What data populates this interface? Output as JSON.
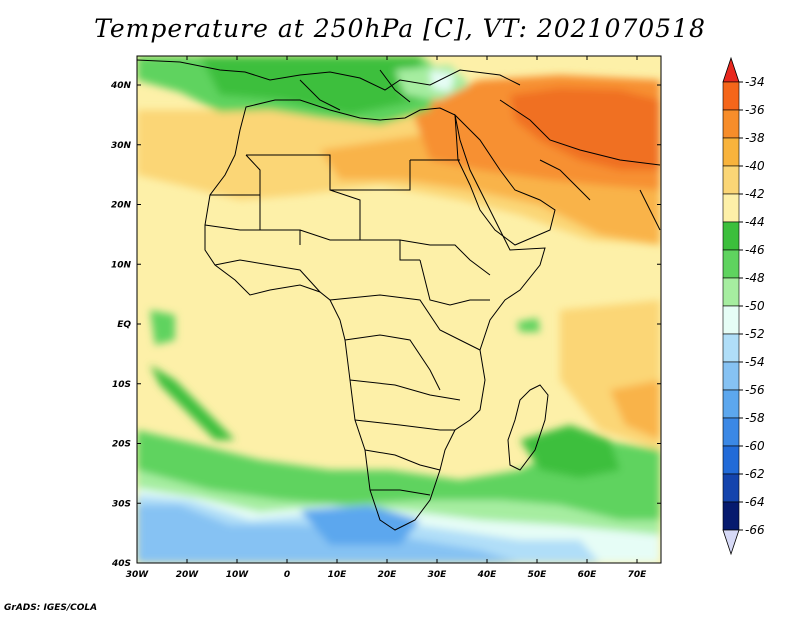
{
  "title": "Temperature at 250hPa [C], VT: 2021070518",
  "credit": "GrADS: IGES/COLA",
  "map": {
    "lat_labels": [
      "40N",
      "30N",
      "20N",
      "10N",
      "EQ",
      "10S",
      "20S",
      "30S",
      "40S"
    ],
    "lon_labels": [
      "30W",
      "20W",
      "10W",
      "0",
      "10E",
      "20E",
      "30E",
      "40E",
      "50E",
      "60E",
      "70E"
    ]
  },
  "colorbar": {
    "levels": [
      {
        "label": "-34",
        "color": "#e8281e"
      },
      {
        "label": "-36",
        "color": "#f5661a"
      },
      {
        "label": "-38",
        "color": "#f78d2a"
      },
      {
        "label": "-40",
        "color": "#f8b33c"
      },
      {
        "label": "-42",
        "color": "#fbd676"
      },
      {
        "label": "-44",
        "color": "#fdf0a8"
      },
      {
        "label": "-46",
        "color": "#3cbf3c"
      },
      {
        "label": "-48",
        "color": "#5fd35f"
      },
      {
        "label": "-50",
        "color": "#a6eda0"
      },
      {
        "label": "-52",
        "color": "#e6fdf6"
      },
      {
        "label": "-54",
        "color": "#b0def8"
      },
      {
        "label": "-56",
        "color": "#86c2f3"
      },
      {
        "label": "-58",
        "color": "#5ca7ee"
      },
      {
        "label": "-60",
        "color": "#3b88e5"
      },
      {
        "label": "-62",
        "color": "#226bd8"
      },
      {
        "label": "-64",
        "color": "#1444ad"
      },
      {
        "label": "-66",
        "color": "#061a6e"
      }
    ],
    "over_color": "#e8281e",
    "under_color": "#d6d9f6"
  },
  "fill_colors": {
    "warm_red": "#f07020",
    "orange": "#f79030",
    "light_orange": "#f9b34a",
    "tan": "#fbd676",
    "pale": "#fdf0a8",
    "green": "#3cbf3c",
    "mid_green": "#5fd35f",
    "light_green": "#a6eda0",
    "white_blue": "#e6fdf6",
    "light_blue": "#b0def8",
    "blue": "#86c2f3",
    "dark_blue": "#5ca7ee"
  }
}
